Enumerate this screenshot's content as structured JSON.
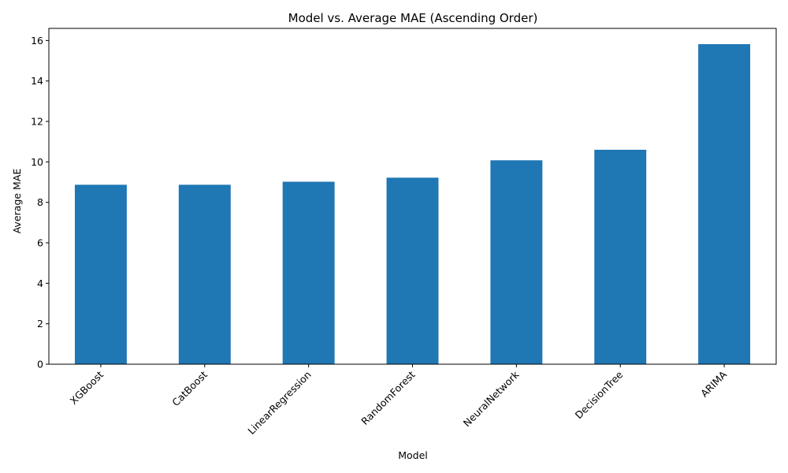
{
  "chart_data": {
    "type": "bar",
    "title": "Model vs. Average MAE (Ascending Order)",
    "xlabel": "Model",
    "ylabel": "Average MAE",
    "categories": [
      "XGBoost",
      "CatBoost",
      "LinearRegression",
      "RandomForest",
      "NeuralNetwork",
      "DecisionTree",
      "ARIMA"
    ],
    "values": [
      8.87,
      8.87,
      9.02,
      9.22,
      10.08,
      10.6,
      15.82
    ],
    "ylim": [
      0,
      16.6
    ],
    "yticks": [
      0,
      2,
      4,
      6,
      8,
      10,
      12,
      14,
      16
    ],
    "grid": false,
    "legend": "none",
    "bar_color": "#1f77b4"
  }
}
